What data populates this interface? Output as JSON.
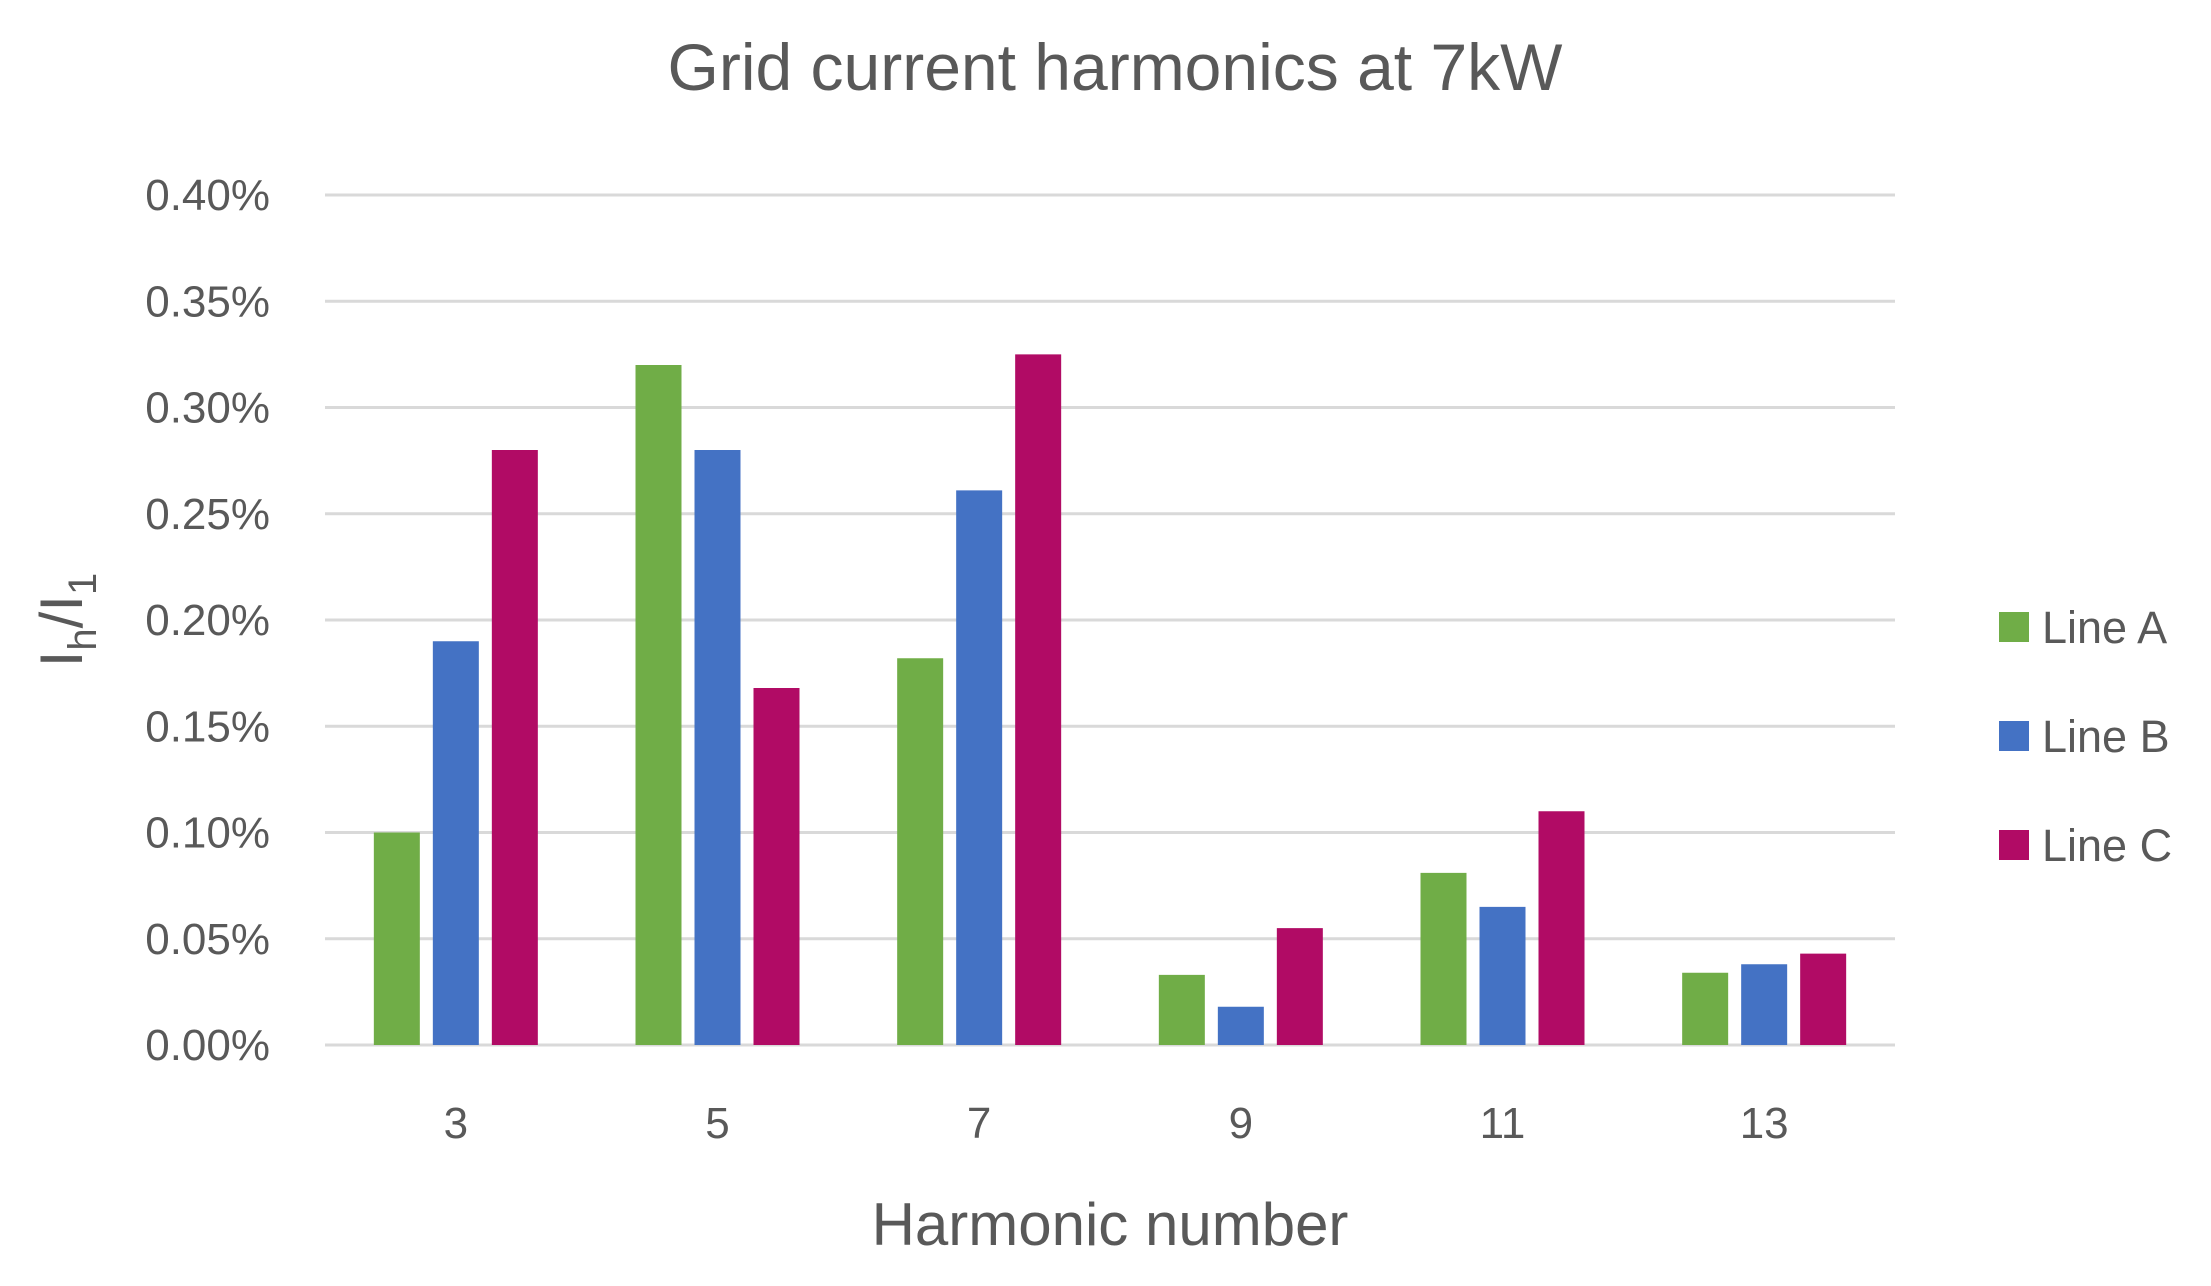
{
  "chart_data": {
    "type": "bar",
    "title": "Grid current harmonics at 7kW",
    "xlabel": "Harmonic number",
    "ylabel": {
      "base": "I",
      "sub_numerator": "h",
      "sep": "/I",
      "sub_denominator": "1"
    },
    "categories": [
      "3",
      "5",
      "7",
      "9",
      "11",
      "13"
    ],
    "series": [
      {
        "name": "Line A",
        "color": "#70ad47",
        "values": [
          0.1,
          0.32,
          0.182,
          0.033,
          0.081,
          0.034
        ]
      },
      {
        "name": "Line B",
        "color": "#4472c4",
        "values": [
          0.19,
          0.28,
          0.261,
          0.018,
          0.065,
          0.038
        ]
      },
      {
        "name": "Line C",
        "color": "#b10b65",
        "values": [
          0.28,
          0.168,
          0.325,
          0.055,
          0.11,
          0.043
        ]
      }
    ],
    "ylim": [
      0,
      0.4
    ],
    "yticks": [
      "0.00%",
      "0.05%",
      "0.10%",
      "0.15%",
      "0.20%",
      "0.25%",
      "0.30%",
      "0.35%",
      "0.40%"
    ],
    "grid": true,
    "legend_position": "right"
  }
}
